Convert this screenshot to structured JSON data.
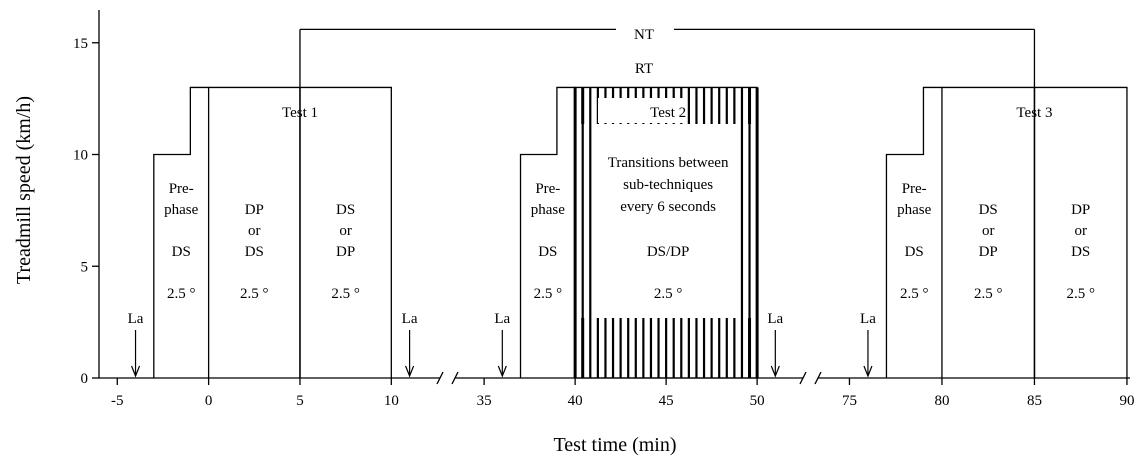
{
  "chart_data": {
    "type": "step-diagram",
    "xlabel": "Test time (min)",
    "ylabel": "Treadmill speed (km/h)",
    "ylim": [
      0,
      16
    ],
    "y_ticks": [
      "0",
      "5",
      "10",
      "15"
    ],
    "x_segments": [
      {
        "range": [
          -5,
          11
        ],
        "ticks": [
          "-5",
          "0",
          "5",
          "10"
        ]
      },
      {
        "range": [
          34,
          51
        ],
        "ticks": [
          "35",
          "40",
          "45",
          "50"
        ]
      },
      {
        "range": [
          74,
          92
        ],
        "ticks": [
          "75",
          "80",
          "85",
          "90"
        ]
      }
    ],
    "bracket_NT": {
      "label": "NT",
      "from_time": 5,
      "to_time": 85,
      "y": 15.6
    },
    "label_RT": "RT",
    "speed_levels": {
      "warmup": 10,
      "test": 13
    },
    "tests": [
      {
        "name": "Test 1",
        "prephase": {
          "start": -3,
          "step": -1,
          "end": 0,
          "labels": [
            "Pre-",
            "phase",
            "DS",
            "2.5 °"
          ]
        },
        "parts": [
          {
            "start": 0,
            "end": 5,
            "labels": [
              "DP",
              "or",
              "DS",
              "2.5 °"
            ]
          },
          {
            "start": 5,
            "end": 10,
            "labels": [
              "DS",
              "or",
              "DP",
              "2.5 °"
            ]
          }
        ],
        "la_markers": [
          -4,
          11
        ]
      },
      {
        "name": "Test 2",
        "prephase": {
          "start": 37,
          "step": 39,
          "end": 40,
          "labels": [
            "Pre-",
            "phase",
            "DS",
            "2.5 °"
          ]
        },
        "transitions": {
          "start": 40,
          "end": 50,
          "labels": [
            "Transitions between",
            "sub-techniques",
            "every 6 seconds",
            "DS/DP",
            "2.5 °"
          ]
        },
        "la_markers": [
          36,
          51
        ]
      },
      {
        "name": "Test 3",
        "prephase": {
          "start": 77,
          "step": 79,
          "end": 80,
          "labels": [
            "Pre-",
            "phase",
            "DS",
            "2.5 °"
          ]
        },
        "parts": [
          {
            "start": 80,
            "end": 85,
            "labels": [
              "DS",
              "or",
              "DP",
              "2.5 °"
            ]
          },
          {
            "start": 85,
            "end": 90,
            "labels": [
              "DP",
              "or",
              "DS",
              "2.5 °"
            ]
          }
        ],
        "la_markers": [
          76,
          91
        ]
      }
    ],
    "la_label": "La"
  }
}
